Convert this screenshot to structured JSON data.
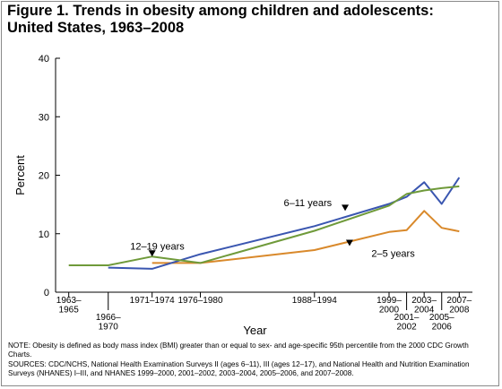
{
  "header": {
    "title_line1": "Figure 1. Trends in obesity among children and adolescents:",
    "title_line2": "United States, 1963–2008"
  },
  "footer": {
    "note": "NOTE: Obesity is defined as body mass index (BMI) greater than or equal to sex- and age-specific 95th percentile from the 2000 CDC Growth Charts.",
    "sources": "SOURCES: CDC/NCHS, National Health Examination Surveys II (ages 6–11), III (ages 12–17), and National Health and Nutrition Examination Surveys (NHANES) I–III, and NHANES 1999–2000, 2001–2002, 2003–2004, 2005–2006, and 2007–2008."
  },
  "chart_data": {
    "type": "line",
    "xlabel": "Year",
    "ylabel": "Percent",
    "ylim": [
      0,
      40
    ],
    "yticks": [
      0,
      10,
      20,
      30,
      40
    ],
    "grid": false,
    "x_tick_labels": [
      {
        "x": 1963.0,
        "lines": [
          "1963–",
          "1965"
        ],
        "row": 0,
        "tick": true
      },
      {
        "x": 1967.5,
        "lines": [
          "1966–",
          "1970"
        ],
        "row": 1,
        "tick": true
      },
      {
        "x": 1972.5,
        "lines": [
          "1971–1974"
        ],
        "row": 0,
        "tick": true
      },
      {
        "x": 1978.0,
        "lines": [
          "1976–1980"
        ],
        "row": 0,
        "tick": true
      },
      {
        "x": 1991.0,
        "lines": [
          "1988–1994"
        ],
        "row": 0,
        "tick": true
      },
      {
        "x": 1999.5,
        "lines": [
          "1999–",
          "2000"
        ],
        "row": 0,
        "tick": true
      },
      {
        "x": 2001.5,
        "lines": [
          "2001–",
          "2002"
        ],
        "row": 1,
        "tick": true
      },
      {
        "x": 2003.5,
        "lines": [
          "2003–",
          "2004"
        ],
        "row": 0,
        "tick": true
      },
      {
        "x": 2005.5,
        "lines": [
          "2005–",
          "2006"
        ],
        "row": 1,
        "tick": true
      },
      {
        "x": 2007.5,
        "lines": [
          "2007–",
          "2008"
        ],
        "row": 0,
        "tick": true
      }
    ],
    "series": [
      {
        "name": "2–5 years",
        "color": "#d9892b",
        "x": [
          1972.5,
          1978.0,
          1991.0,
          1999.5,
          2001.5,
          2003.5,
          2005.5,
          2007.5
        ],
        "y": [
          5.0,
          5.0,
          7.2,
          10.3,
          10.6,
          13.9,
          11.0,
          10.4
        ],
        "label_pos": [
          1997.5,
          6.7
        ],
        "marker_pos": [
          1995.0,
          8.5
        ]
      },
      {
        "name": "6–11 years",
        "color": "#3a56b0",
        "x": [
          1967.5,
          1972.5,
          1978.0,
          1991.0,
          1999.5,
          2001.5,
          2003.5,
          2005.5,
          2007.5
        ],
        "y": [
          4.2,
          4.0,
          6.5,
          11.3,
          15.1,
          16.3,
          18.8,
          15.1,
          19.6
        ],
        "label_pos": [
          1987.5,
          15.3
        ],
        "marker_pos": [
          1994.5,
          14.5
        ]
      },
      {
        "name": "12–19 years",
        "color": "#6f9a3a",
        "x": [
          1963.0,
          1967.5,
          1972.5,
          1978.0,
          1991.0,
          1999.5,
          2001.5,
          2003.5,
          2005.5,
          2007.5
        ],
        "y": [
          4.6,
          4.6,
          6.1,
          5.0,
          10.5,
          14.8,
          16.8,
          17.4,
          17.8,
          18.1
        ],
        "label_pos": [
          1970.0,
          7.9
        ],
        "marker_pos": [
          1972.5,
          6.7
        ]
      }
    ]
  }
}
